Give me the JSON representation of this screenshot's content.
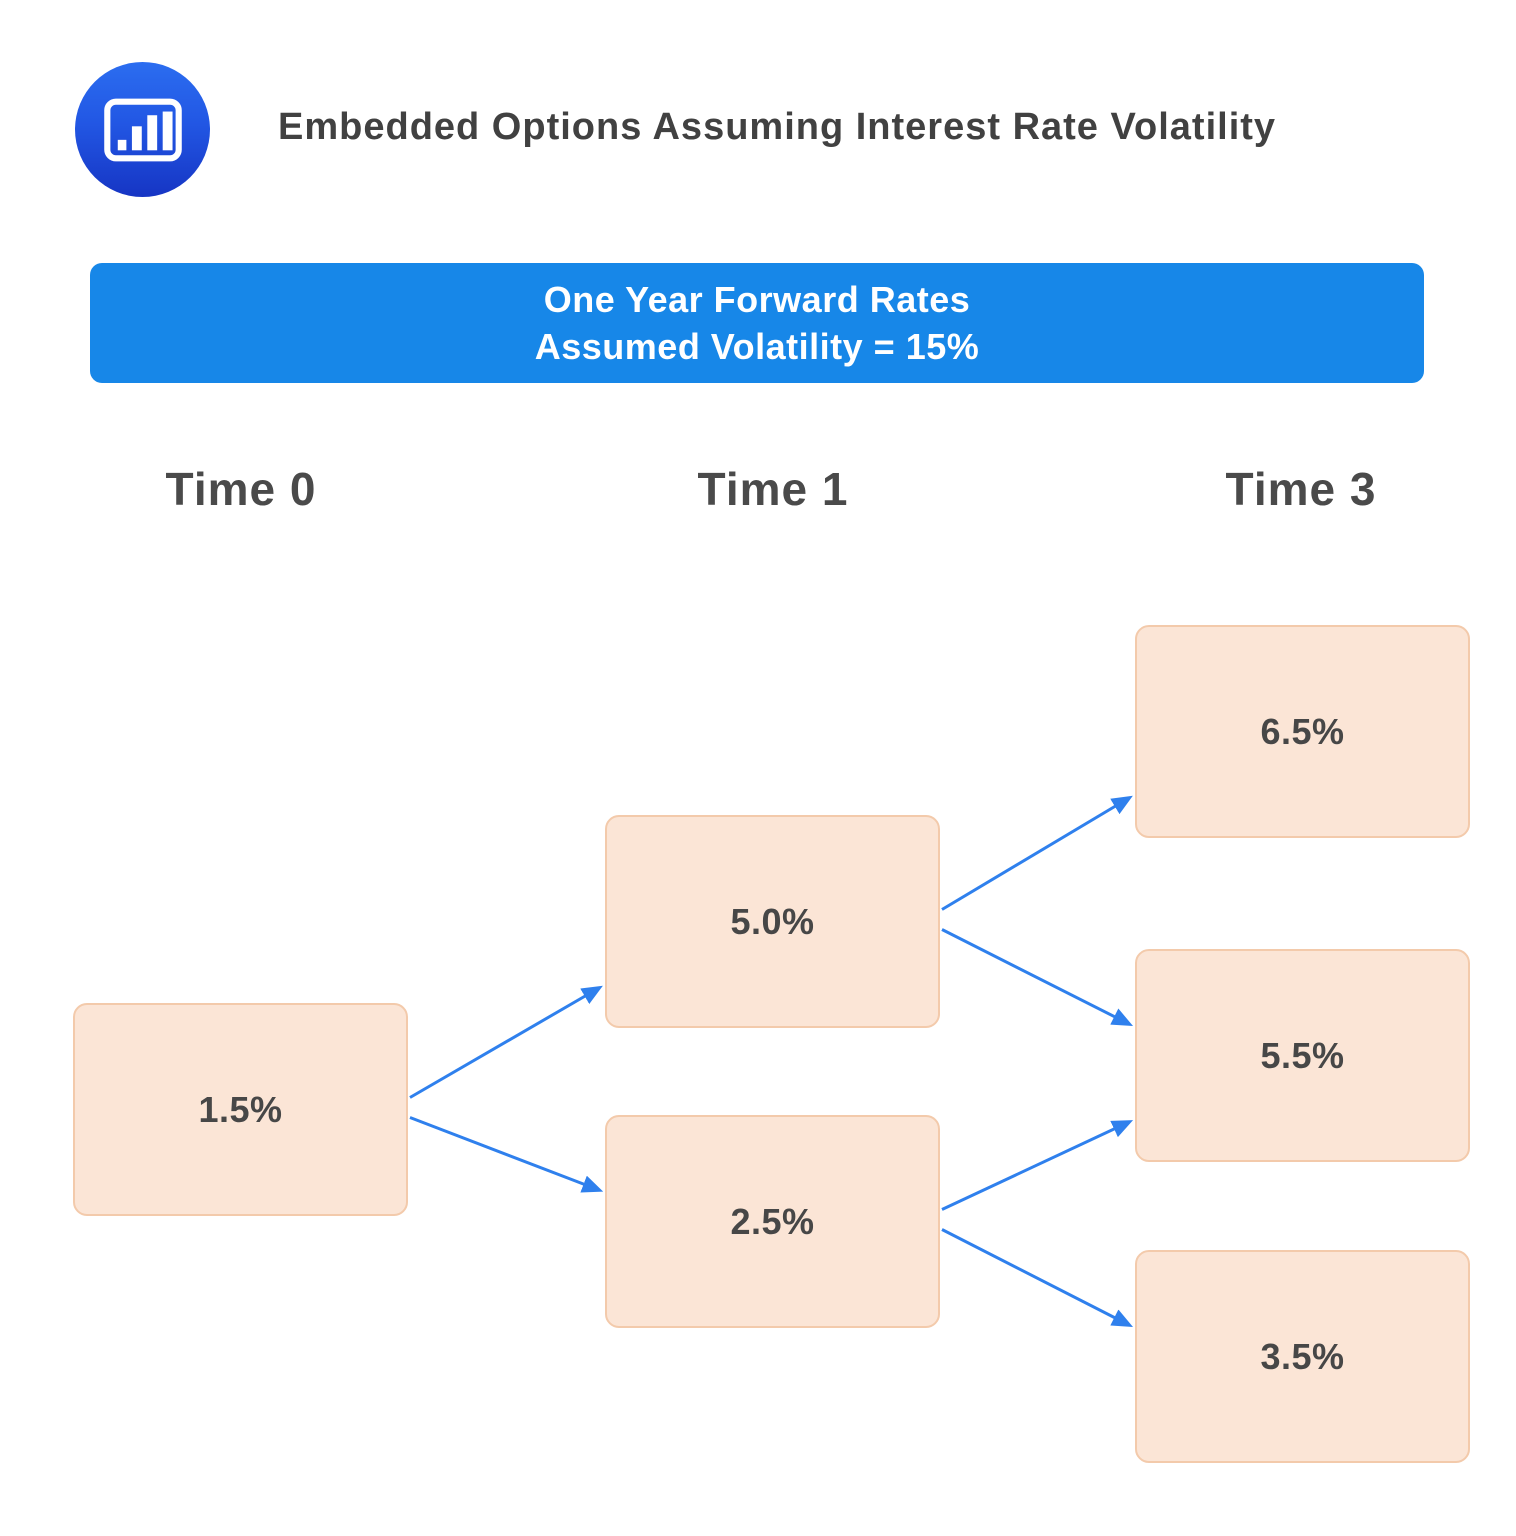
{
  "header": {
    "title": "Embedded Options Assuming Interest Rate Volatility",
    "logo_icon": "bar-chart-icon"
  },
  "banner": {
    "line1": "One Year Forward Rates",
    "line2": "Assumed Volatility = 15%"
  },
  "columns": [
    "Time 0",
    "Time 1",
    "Time 3"
  ],
  "tree": {
    "nodes": {
      "t0": {
        "label": "1.5%",
        "column": "Time 0"
      },
      "t1_up": {
        "label": "5.0%",
        "column": "Time 1"
      },
      "t1_down": {
        "label": "2.5%",
        "column": "Time 1"
      },
      "t3_up": {
        "label": "6.5%",
        "column": "Time 3"
      },
      "t3_mid": {
        "label": "5.5%",
        "column": "Time 3"
      },
      "t3_down": {
        "label": "3.5%",
        "column": "Time 3"
      }
    },
    "edges": [
      {
        "from": "t0",
        "to": "t1_up"
      },
      {
        "from": "t0",
        "to": "t1_down"
      },
      {
        "from": "t1_up",
        "to": "t3_up"
      },
      {
        "from": "t1_up",
        "to": "t3_mid"
      },
      {
        "from": "t1_down",
        "to": "t3_mid"
      },
      {
        "from": "t1_down",
        "to": "t3_down"
      }
    ]
  },
  "colors": {
    "banner_bg": "#1787E8",
    "banner_text": "#FFFFFF",
    "node_fill": "#FBE5D6",
    "node_border": "#F3CAAB",
    "arrow": "#2F80ED",
    "title_text": "#414141",
    "label_text": "#4A4A4A",
    "node_text": "#474747",
    "page_bg": "#FFFFFF"
  }
}
